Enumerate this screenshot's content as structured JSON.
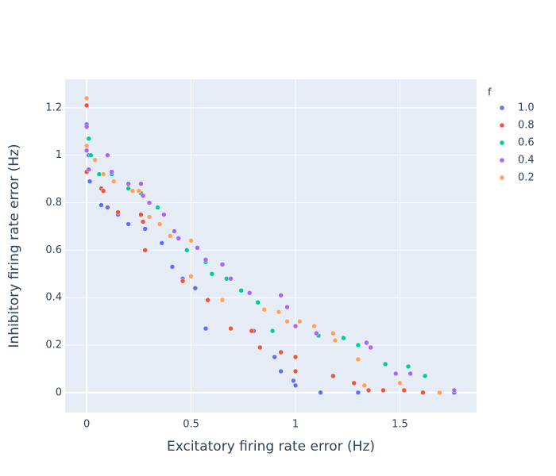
{
  "chart_data": {
    "type": "scatter",
    "xlabel": "Excitatory firing rate error (Hz)",
    "ylabel": "Inhibitory firing rate error (Hz)",
    "legend_title": "f",
    "xlim": [
      -0.103,
      1.867
    ],
    "ylim": [
      -0.084,
      1.32
    ],
    "xticks": [
      0,
      0.5,
      1,
      1.5
    ],
    "yticks": [
      0,
      0.2,
      0.4,
      0.6,
      0.8,
      1,
      1.2
    ],
    "grid": true,
    "legend_position": "right",
    "series": [
      {
        "name": "1.0",
        "color": "#636efa",
        "x": [
          0,
          0.01,
          0.015,
          0.07,
          0.1,
          0.1,
          0.15,
          0.2,
          0.28,
          0.36,
          0.41,
          0.46,
          0.52,
          0.57,
          0.8,
          0.83,
          0.9,
          0.93,
          0.99,
          1.0,
          1.12,
          1.3,
          1.76
        ],
        "values": [
          1.13,
          1.0,
          0.89,
          0.79,
          1.0,
          0.78,
          0.75,
          0.71,
          0.69,
          0.63,
          0.53,
          0.48,
          0.44,
          0.27,
          0.26,
          0.19,
          0.15,
          0.09,
          0.05,
          0.03,
          0.0,
          0.0,
          0.0
        ]
      },
      {
        "name": "0.8",
        "color": "#ef553b",
        "x": [
          0,
          0,
          0.07,
          0.08,
          0.15,
          0.26,
          0.27,
          0.28,
          0.46,
          0.58,
          0.69,
          0.79,
          0.83,
          0.93,
          1.0,
          1.0,
          1.18,
          1.28,
          1.35,
          1.42,
          1.52,
          1.61
        ],
        "values": [
          1.21,
          0.93,
          0.86,
          0.85,
          0.76,
          0.75,
          0.72,
          0.6,
          0.47,
          0.39,
          0.27,
          0.26,
          0.19,
          0.17,
          0.15,
          0.09,
          0.07,
          0.04,
          0.01,
          0.01,
          0.01,
          0.0
        ]
      },
      {
        "name": "0.6",
        "color": "#00cc96",
        "x": [
          0.01,
          0.02,
          0.06,
          0.12,
          0.2,
          0.26,
          0.34,
          0.48,
          0.57,
          0.6,
          0.67,
          0.74,
          0.82,
          0.89,
          1.11,
          1.23,
          1.3,
          1.43,
          1.54,
          1.62
        ],
        "values": [
          1.07,
          1.0,
          0.92,
          0.92,
          0.86,
          0.84,
          0.78,
          0.6,
          0.55,
          0.5,
          0.48,
          0.43,
          0.38,
          0.26,
          0.24,
          0.23,
          0.2,
          0.12,
          0.11,
          0.07
        ]
      },
      {
        "name": "0.4",
        "color": "#ab63fa",
        "x": [
          0,
          0,
          0.01,
          0.1,
          0.12,
          0.2,
          0.26,
          0.27,
          0.3,
          0.37,
          0.42,
          0.44,
          0.53,
          0.57,
          0.65,
          0.69,
          0.78,
          0.93,
          0.96,
          1.0,
          1.1,
          1.34,
          1.36,
          1.48,
          1.55,
          1.76
        ],
        "values": [
          1.12,
          1.02,
          0.94,
          1.0,
          0.93,
          0.88,
          0.88,
          0.83,
          0.8,
          0.75,
          0.68,
          0.65,
          0.61,
          0.56,
          0.54,
          0.48,
          0.42,
          0.41,
          0.36,
          0.28,
          0.25,
          0.21,
          0.19,
          0.08,
          0.08,
          0.01
        ]
      },
      {
        "name": "0.2",
        "color": "#ffa15a",
        "x": [
          0,
          0,
          0.04,
          0.08,
          0.13,
          0.22,
          0.25,
          0.3,
          0.35,
          0.4,
          0.5,
          0.5,
          0.65,
          0.85,
          0.92,
          0.96,
          1.02,
          1.09,
          1.18,
          1.19,
          1.3,
          1.33,
          1.5,
          1.69
        ],
        "values": [
          1.24,
          1.04,
          0.98,
          0.92,
          0.89,
          0.85,
          0.85,
          0.74,
          0.71,
          0.66,
          0.64,
          0.49,
          0.39,
          0.35,
          0.34,
          0.3,
          0.3,
          0.28,
          0.25,
          0.22,
          0.14,
          0.03,
          0.04,
          0.0
        ]
      }
    ]
  }
}
